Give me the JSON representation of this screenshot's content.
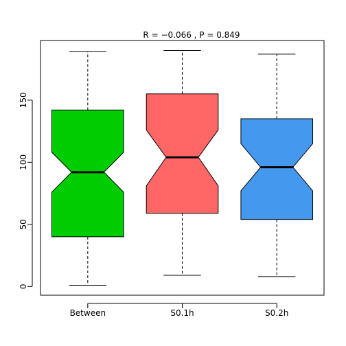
{
  "chart_data": {
    "type": "boxplot",
    "notched": true,
    "title": "R =  −0.066 ,  P =  0.849",
    "xlabel": "",
    "ylabel": "",
    "ylim": [
      -7,
      198
    ],
    "yticks": [
      0,
      50,
      100,
      150
    ],
    "grid": false,
    "legend": "none",
    "categories": [
      "Between",
      "S0.1h",
      "S0.2h"
    ],
    "boxes": [
      {
        "name": "Between",
        "color": "#00cd00",
        "whisker_low": 1,
        "q1": 40,
        "notch_low": 76,
        "median": 92,
        "notch_high": 108,
        "q3": 142,
        "whisker_high": 189
      },
      {
        "name": "S0.1h",
        "color": "#ff6666",
        "whisker_low": 9,
        "q1": 59,
        "notch_low": 81,
        "median": 104,
        "notch_high": 126,
        "q3": 155,
        "whisker_high": 190
      },
      {
        "name": "S0.2h",
        "color": "#4499ee",
        "whisker_low": 8,
        "q1": 54,
        "notch_low": 77,
        "median": 96,
        "notch_high": 115,
        "q3": 135,
        "whisker_high": 187
      }
    ]
  }
}
